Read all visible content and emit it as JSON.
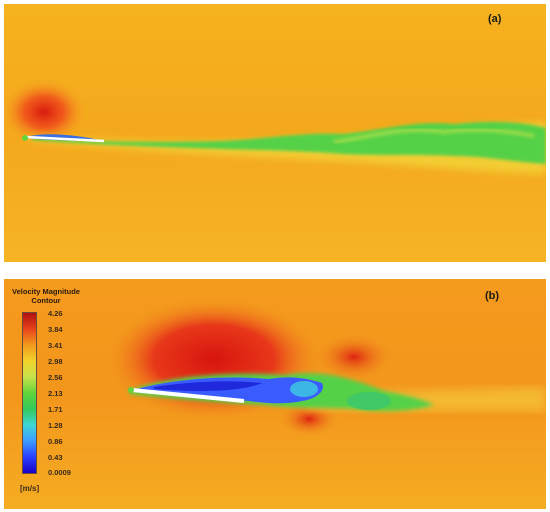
{
  "panels": {
    "a": {
      "label": "(a)"
    },
    "b": {
      "label": "(b)"
    }
  },
  "legend": {
    "title_line1": "Velocity Magnitude",
    "title_line2": "Contour",
    "ticks": [
      "4.26",
      "3.84",
      "3.41",
      "2.98",
      "2.56",
      "2.13",
      "1.71",
      "1.28",
      "0.86",
      "0.43",
      "0.0009"
    ],
    "unit": "[m/s]"
  },
  "colors": {
    "background_field": "#f7b323",
    "low_velocity": "#2a40ff",
    "mid_velocity": "#47d44a",
    "high_velocity": "#d6180f"
  }
}
